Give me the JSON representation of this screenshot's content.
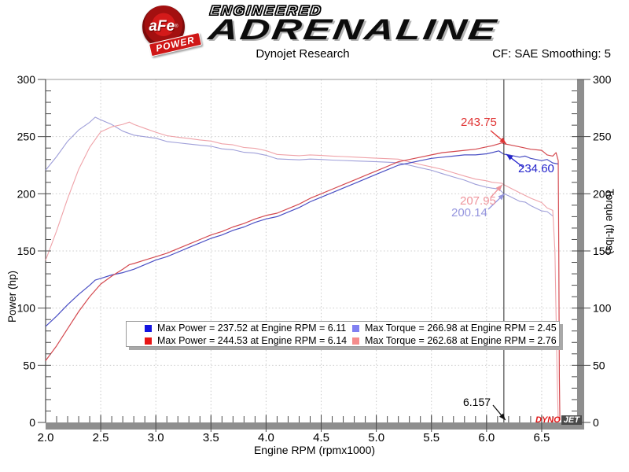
{
  "banner": {
    "logo": {
      "circle_text": "aFe",
      "reg_mark": "®",
      "ribbon_text": "POWER"
    },
    "line1": "ENGINEERED",
    "line2": "ADRENALINE"
  },
  "header": {
    "title": "Dynojet Research",
    "correction": "CF: SAE Smoothing: 5"
  },
  "chart_data": {
    "type": "line",
    "title": "Dynojet Research",
    "xlabel": "Engine RPM (rpmx1000)",
    "ylabel_left": "Power (hp)",
    "ylabel_right": "Torque (ft-lbs)",
    "xlim": [
      2.0,
      6.8
    ],
    "ylim": [
      0,
      300
    ],
    "x_ticks": [
      "2.0",
      "2.5",
      "3.0",
      "3.5",
      "4.0",
      "4.5",
      "5.0",
      "5.5",
      "6.0",
      "6.5"
    ],
    "y_ticks": [
      "0",
      "50",
      "100",
      "150",
      "200",
      "250",
      "300"
    ],
    "x_minor_step": 0.1,
    "y_minor_step": 10,
    "grid": "dotted-at-major-ticks",
    "cursor_rpm": 6.157,
    "series": [
      {
        "name": "torque-run1",
        "color": "#9f9fd9",
        "width": 1.1,
        "points": [
          [
            2.0,
            220.6
          ],
          [
            2.1,
            232.6
          ],
          [
            2.2,
            245.9
          ],
          [
            2.3,
            255.8
          ],
          [
            2.4,
            262.6
          ],
          [
            2.45,
            266.98
          ],
          [
            2.5,
            264.7
          ],
          [
            2.6,
            260.6
          ],
          [
            2.7,
            254.8
          ],
          [
            2.8,
            251.3
          ],
          [
            2.9,
            249.9
          ],
          [
            3.0,
            248.6
          ],
          [
            3.1,
            245.7
          ],
          [
            3.2,
            244.6
          ],
          [
            3.3,
            243.5
          ],
          [
            3.4,
            242.5
          ],
          [
            3.5,
            241.6
          ],
          [
            3.6,
            239.3
          ],
          [
            3.7,
            238.5
          ],
          [
            3.8,
            236.3
          ],
          [
            3.9,
            235.6
          ],
          [
            4.0,
            233.7
          ],
          [
            4.1,
            230.6
          ],
          [
            4.2,
            230.1
          ],
          [
            4.3,
            229.7
          ],
          [
            4.4,
            230.4
          ],
          [
            4.5,
            230.0
          ],
          [
            4.6,
            229.5
          ],
          [
            4.7,
            229.1
          ],
          [
            4.8,
            228.7
          ],
          [
            4.9,
            228.4
          ],
          [
            5.0,
            228.0
          ],
          [
            5.1,
            227.6
          ],
          [
            5.2,
            227.2
          ],
          [
            5.3,
            225.0
          ],
          [
            5.4,
            222.7
          ],
          [
            5.5,
            220.6
          ],
          [
            5.6,
            217.6
          ],
          [
            5.7,
            214.7
          ],
          [
            5.8,
            211.9
          ],
          [
            5.9,
            208.3
          ],
          [
            6.0,
            205.7
          ],
          [
            6.05,
            204.9
          ],
          [
            6.11,
            204.2
          ],
          [
            6.157,
            200.14
          ],
          [
            6.2,
            198.2
          ],
          [
            6.3,
            193.4
          ],
          [
            6.35,
            192.7
          ],
          [
            6.4,
            189.6
          ],
          [
            6.5,
            185.0
          ],
          [
            6.55,
            184.4
          ],
          [
            6.6,
            180.6
          ]
        ]
      },
      {
        "name": "torque-run2",
        "color": "#efa2a8",
        "width": 1.1,
        "points": [
          [
            2.0,
            141.8
          ],
          [
            2.1,
            167.6
          ],
          [
            2.2,
            195.8
          ],
          [
            2.3,
            221.5
          ],
          [
            2.4,
            240.7
          ],
          [
            2.5,
            254.2
          ],
          [
            2.6,
            258.6
          ],
          [
            2.7,
            260.7
          ],
          [
            2.76,
            262.68
          ],
          [
            2.8,
            260.7
          ],
          [
            2.9,
            257.2
          ],
          [
            3.0,
            253.8
          ],
          [
            3.1,
            250.8
          ],
          [
            3.2,
            249.5
          ],
          [
            3.3,
            248.3
          ],
          [
            3.4,
            247.1
          ],
          [
            3.5,
            246.1
          ],
          [
            3.6,
            243.7
          ],
          [
            3.7,
            242.8
          ],
          [
            3.8,
            240.5
          ],
          [
            3.9,
            239.7
          ],
          [
            4.0,
            237.7
          ],
          [
            4.1,
            234.4
          ],
          [
            4.2,
            233.8
          ],
          [
            4.3,
            233.3
          ],
          [
            4.4,
            234.0
          ],
          [
            4.5,
            233.5
          ],
          [
            4.6,
            233.0
          ],
          [
            4.7,
            232.6
          ],
          [
            4.8,
            232.1
          ],
          [
            4.9,
            231.6
          ],
          [
            5.0,
            231.1
          ],
          [
            5.1,
            230.7
          ],
          [
            5.2,
            230.3
          ],
          [
            5.3,
            227.9
          ],
          [
            5.4,
            225.6
          ],
          [
            5.5,
            223.5
          ],
          [
            5.6,
            221.3
          ],
          [
            5.7,
            218.4
          ],
          [
            5.8,
            215.5
          ],
          [
            5.9,
            212.8
          ],
          [
            6.0,
            211.4
          ],
          [
            6.05,
            210.1
          ],
          [
            6.14,
            209.2
          ],
          [
            6.157,
            207.95
          ],
          [
            6.2,
            205.8
          ],
          [
            6.3,
            200.9
          ],
          [
            6.4,
            196.2
          ],
          [
            6.5,
            192.3
          ],
          [
            6.55,
            187.6
          ],
          [
            6.6,
            185.5
          ],
          [
            6.62,
            150
          ],
          [
            6.64,
            40
          ],
          [
            6.65,
            2
          ]
        ]
      },
      {
        "name": "power-run1",
        "color": "#4a4fc4",
        "width": 1.2,
        "points": [
          [
            2.0,
            84
          ],
          [
            2.1,
            93
          ],
          [
            2.2,
            103
          ],
          [
            2.3,
            112
          ],
          [
            2.4,
            120
          ],
          [
            2.45,
            124.5
          ],
          [
            2.5,
            126
          ],
          [
            2.6,
            129
          ],
          [
            2.7,
            131
          ],
          [
            2.8,
            134
          ],
          [
            2.9,
            138
          ],
          [
            3.0,
            142
          ],
          [
            3.1,
            145
          ],
          [
            3.2,
            149
          ],
          [
            3.3,
            153
          ],
          [
            3.4,
            157
          ],
          [
            3.5,
            161
          ],
          [
            3.6,
            164
          ],
          [
            3.7,
            168
          ],
          [
            3.8,
            171
          ],
          [
            3.9,
            175
          ],
          [
            4.0,
            178
          ],
          [
            4.1,
            180
          ],
          [
            4.2,
            184
          ],
          [
            4.3,
            188
          ],
          [
            4.4,
            193
          ],
          [
            4.5,
            197
          ],
          [
            4.6,
            201
          ],
          [
            4.7,
            205
          ],
          [
            4.8,
            209
          ],
          [
            4.9,
            213
          ],
          [
            5.0,
            217
          ],
          [
            5.1,
            221
          ],
          [
            5.2,
            225
          ],
          [
            5.3,
            227
          ],
          [
            5.4,
            229
          ],
          [
            5.5,
            231
          ],
          [
            5.6,
            232
          ],
          [
            5.7,
            233
          ],
          [
            5.8,
            234
          ],
          [
            5.9,
            234
          ],
          [
            6.0,
            235
          ],
          [
            6.05,
            236
          ],
          [
            6.11,
            237.52
          ],
          [
            6.157,
            234.6
          ],
          [
            6.2,
            234
          ],
          [
            6.3,
            232
          ],
          [
            6.35,
            233
          ],
          [
            6.4,
            231
          ],
          [
            6.5,
            229
          ],
          [
            6.55,
            230
          ],
          [
            6.6,
            227
          ],
          [
            6.65,
            226
          ]
        ]
      },
      {
        "name": "power-run2",
        "color": "#d4494f",
        "width": 1.2,
        "points": [
          [
            2.0,
            54
          ],
          [
            2.1,
            67
          ],
          [
            2.2,
            82
          ],
          [
            2.3,
            97
          ],
          [
            2.4,
            110
          ],
          [
            2.5,
            121
          ],
          [
            2.6,
            128
          ],
          [
            2.7,
            134
          ],
          [
            2.76,
            138
          ],
          [
            2.8,
            139
          ],
          [
            2.9,
            142
          ],
          [
            3.0,
            145
          ],
          [
            3.1,
            148
          ],
          [
            3.2,
            152
          ],
          [
            3.3,
            156
          ],
          [
            3.4,
            160
          ],
          [
            3.5,
            164
          ],
          [
            3.6,
            167
          ],
          [
            3.7,
            171
          ],
          [
            3.8,
            174
          ],
          [
            3.9,
            178
          ],
          [
            4.0,
            181
          ],
          [
            4.1,
            183
          ],
          [
            4.2,
            187
          ],
          [
            4.3,
            191
          ],
          [
            4.4,
            196
          ],
          [
            4.5,
            200
          ],
          [
            4.6,
            204
          ],
          [
            4.7,
            208
          ],
          [
            4.8,
            212
          ],
          [
            4.9,
            216
          ],
          [
            5.0,
            220
          ],
          [
            5.1,
            224
          ],
          [
            5.2,
            228
          ],
          [
            5.3,
            230
          ],
          [
            5.4,
            232
          ],
          [
            5.5,
            234
          ],
          [
            5.6,
            236
          ],
          [
            5.7,
            237
          ],
          [
            5.8,
            238
          ],
          [
            5.9,
            239
          ],
          [
            6.0,
            241
          ],
          [
            6.05,
            242
          ],
          [
            6.14,
            244.53
          ],
          [
            6.157,
            243.75
          ],
          [
            6.2,
            243
          ],
          [
            6.3,
            241
          ],
          [
            6.4,
            239
          ],
          [
            6.5,
            238
          ],
          [
            6.55,
            234
          ],
          [
            6.6,
            233
          ],
          [
            6.63,
            236
          ],
          [
            6.65,
            229
          ],
          [
            6.655,
            150
          ],
          [
            6.66,
            40
          ],
          [
            6.665,
            2
          ]
        ]
      }
    ],
    "callouts": [
      {
        "label": "243.75",
        "color": "#e03434"
      },
      {
        "label": "234.60",
        "color": "#2525cc"
      },
      {
        "label": "207.95",
        "color": "#ef959c"
      },
      {
        "label": "200.14",
        "color": "#9595de"
      },
      {
        "label": "6.157",
        "color": "#000000"
      }
    ]
  },
  "legend": {
    "items": [
      {
        "swatch": "#1414e0",
        "text": "Max Power = 237.52 at Engine RPM = 6.11"
      },
      {
        "swatch": "#8080f2",
        "text": "Max Torque = 266.98 at Engine RPM = 2.45"
      },
      {
        "swatch": "#e81414",
        "text": "Max Power = 244.53 at Engine RPM = 6.14"
      },
      {
        "swatch": "#f58c8c",
        "text": "Max Torque = 262.68 at Engine RPM = 2.76"
      }
    ]
  },
  "watermark": {
    "dyno": "DYNO",
    "jet": "JET"
  }
}
